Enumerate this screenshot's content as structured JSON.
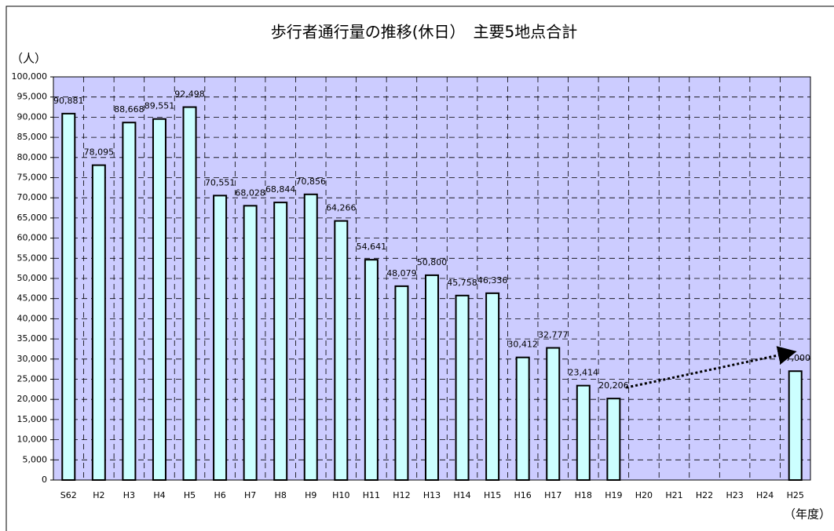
{
  "chart_data": {
    "type": "bar",
    "title": "歩行者通行量の推移(休日）　主要5地点合計",
    "y_label": "（人）",
    "x_label": "（年度）",
    "categories": [
      "S62",
      "H2",
      "H3",
      "H4",
      "H5",
      "H6",
      "H7",
      "H8",
      "H9",
      "H10",
      "H11",
      "H12",
      "H13",
      "H14",
      "H15",
      "H16",
      "H17",
      "H18",
      "H19",
      "H20",
      "H21",
      "H22",
      "H23",
      "H24",
      "H25"
    ],
    "values": [
      90881,
      78095,
      88668,
      89551,
      92498,
      70551,
      68028,
      68844,
      70856,
      64266,
      54641,
      48079,
      50800,
      45758,
      46336,
      30412,
      32777,
      23414,
      20206,
      null,
      null,
      null,
      null,
      null,
      27000
    ],
    "value_labels": [
      "90,881",
      "78,095",
      "88,668",
      "89,551",
      "92,498",
      "70,551",
      "68,028",
      "68,844",
      "70,856",
      "64,266",
      "54,641",
      "48,079",
      "50,800",
      "45,758",
      "46,336",
      "30,412",
      "32,777",
      "23,414",
      "20,206",
      null,
      null,
      null,
      null,
      null,
      "27,000"
    ],
    "color": "#ccffff",
    "background": "#ccccff",
    "ylim": [
      0,
      100000
    ],
    "yticks": [
      0,
      {
        "value": 5000,
        "label": "5,000"
      },
      {
        "value": 10000,
        "label": "10,000"
      },
      {
        "value": 15000,
        "label": "15,000"
      },
      {
        "value": 20000,
        "label": "20,000"
      },
      {
        "value": 25000,
        "label": "25,000"
      },
      {
        "value": 30000,
        "label": "30,000"
      },
      {
        "value": 35000,
        "label": "35,000"
      },
      {
        "value": 40000,
        "label": "40,000"
      },
      {
        "value": 45000,
        "label": "45,000"
      },
      {
        "value": 50000,
        "label": "50,000"
      },
      {
        "value": 55000,
        "label": "55,000"
      },
      {
        "value": 60000,
        "label": "60,000"
      },
      {
        "value": 65000,
        "label": "65,000"
      },
      {
        "value": 70000,
        "label": "70,000"
      },
      {
        "value": 75000,
        "label": "75,000"
      },
      {
        "value": 80000,
        "label": "80,000"
      },
      {
        "value": 85000,
        "label": "85,000"
      },
      {
        "value": 90000,
        "label": "90,000"
      },
      {
        "value": 95000,
        "label": "95,000"
      },
      {
        "value": 100000,
        "label": "100,000"
      }
    ],
    "grid": true
  }
}
